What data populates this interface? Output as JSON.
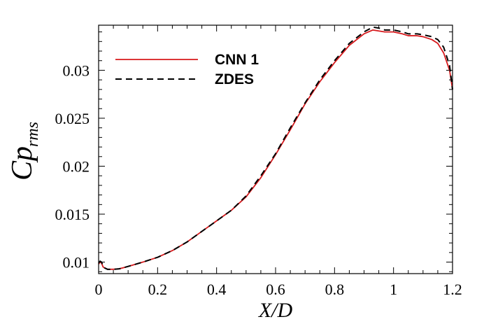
{
  "chart_data": {
    "type": "line",
    "xlabel": "X/D",
    "ylabel_main": "Cp",
    "ylabel_sub": "rms",
    "xlim": [
      0,
      1.2
    ],
    "ylim": [
      0.0088,
      0.0347
    ],
    "x_ticks": [
      0,
      0.2,
      0.4,
      0.6,
      0.8,
      1,
      1.2
    ],
    "x_tick_labels": [
      "0",
      "0.2",
      "0.4",
      "0.6",
      "0.8",
      "1",
      "1.2"
    ],
    "y_ticks": [
      0.01,
      0.015,
      0.02,
      0.025,
      0.03
    ],
    "y_tick_labels": [
      "0.01",
      "0.015",
      "0.02",
      "0.025",
      "0.03"
    ],
    "grid": false,
    "legend_position": "top-left",
    "series": [
      {
        "name": "CNN 1",
        "color": "#d7191c",
        "style": "solid",
        "x": [
          0.0,
          0.005,
          0.01,
          0.015,
          0.02,
          0.03,
          0.04,
          0.05,
          0.07,
          0.1,
          0.15,
          0.2,
          0.25,
          0.3,
          0.35,
          0.4,
          0.45,
          0.5,
          0.55,
          0.6,
          0.65,
          0.7,
          0.75,
          0.8,
          0.85,
          0.9,
          0.93,
          0.95,
          0.97,
          1.0,
          1.03,
          1.05,
          1.08,
          1.1,
          1.13,
          1.15,
          1.17,
          1.19,
          1.2
        ],
        "y": [
          0.0098,
          0.01,
          0.0099,
          0.0095,
          0.0094,
          0.00925,
          0.00925,
          0.00925,
          0.0093,
          0.00955,
          0.01,
          0.0105,
          0.0112,
          0.0121,
          0.0132,
          0.0143,
          0.0154,
          0.0168,
          0.0188,
          0.0212,
          0.0238,
          0.0265,
          0.0288,
          0.0308,
          0.0326,
          0.0338,
          0.0342,
          0.0341,
          0.034,
          0.034,
          0.0338,
          0.0336,
          0.0336,
          0.0335,
          0.0332,
          0.0328,
          0.0318,
          0.03,
          0.028
        ]
      },
      {
        "name": "ZDES",
        "color": "#000000",
        "style": "dashed",
        "x": [
          0.0,
          0.005,
          0.01,
          0.015,
          0.02,
          0.03,
          0.04,
          0.05,
          0.07,
          0.1,
          0.15,
          0.2,
          0.25,
          0.3,
          0.35,
          0.4,
          0.45,
          0.5,
          0.55,
          0.6,
          0.65,
          0.7,
          0.75,
          0.8,
          0.85,
          0.9,
          0.93,
          0.95,
          0.97,
          1.0,
          1.03,
          1.05,
          1.08,
          1.1,
          1.13,
          1.15,
          1.17,
          1.19,
          1.2
        ],
        "y": [
          0.0099,
          0.0101,
          0.01,
          0.0096,
          0.0094,
          0.00925,
          0.00925,
          0.00925,
          0.0093,
          0.00955,
          0.01,
          0.0105,
          0.0112,
          0.0121,
          0.0132,
          0.0143,
          0.0154,
          0.0169,
          0.019,
          0.0213,
          0.024,
          0.0266,
          0.029,
          0.031,
          0.0328,
          0.034,
          0.0345,
          0.0344,
          0.0342,
          0.0342,
          0.034,
          0.0338,
          0.0338,
          0.0337,
          0.0335,
          0.0332,
          0.0324,
          0.0305,
          0.028
        ]
      }
    ]
  }
}
